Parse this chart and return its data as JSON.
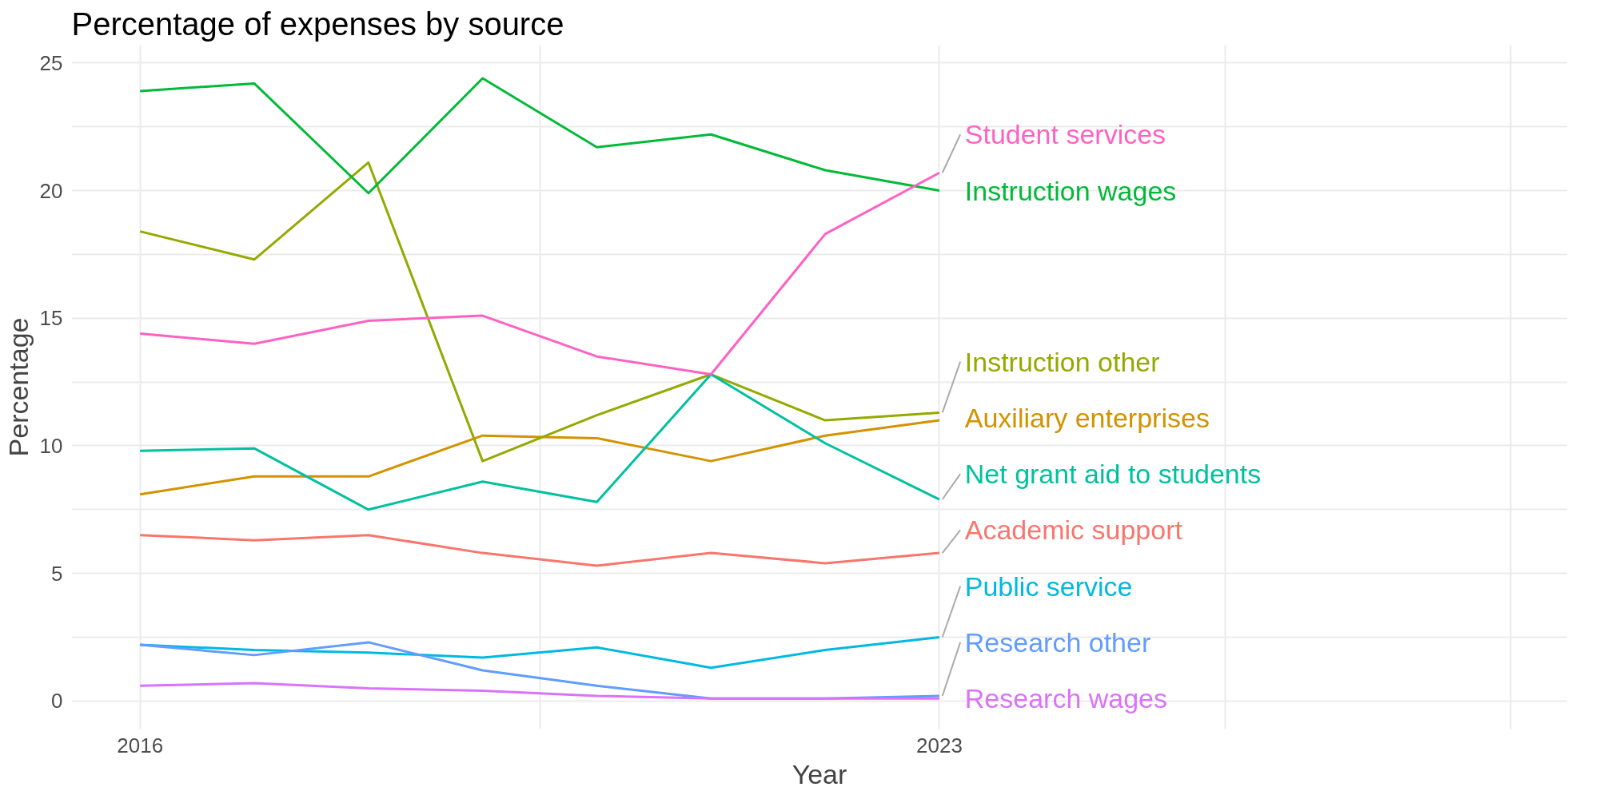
{
  "chart_data": {
    "type": "line",
    "title": "Percentage of expenses by source",
    "xlabel": "Year",
    "ylabel": "Percentage",
    "x": [
      2016,
      2017,
      2018,
      2019,
      2020,
      2021,
      2022,
      2023
    ],
    "xlim": [
      2015.4,
      2028.5
    ],
    "xticks": [
      2016,
      {
        "value": 2019.5,
        "label": null
      },
      2023,
      {
        "value": 2025.5,
        "label": null
      },
      {
        "value": 2028,
        "label": null
      }
    ],
    "ylim": [
      -1.1,
      25.7
    ],
    "yticks": [
      0,
      {
        "value": 2.5,
        "label": null
      },
      5,
      {
        "value": 7.5,
        "label": null
      },
      10,
      {
        "value": 12.5,
        "label": null
      },
      15,
      {
        "value": 17.5,
        "label": null
      },
      20,
      {
        "value": 22.5,
        "label": null
      },
      25
    ],
    "grid": true,
    "marker": "none",
    "line_style": "solid",
    "series": [
      {
        "name": "Academic support",
        "color": "#f8766d",
        "values": [
          6.5,
          6.3,
          6.5,
          5.8,
          5.3,
          5.8,
          5.4,
          5.8
        ]
      },
      {
        "name": "Auxiliary enterprises",
        "color": "#d39200",
        "values": [
          8.1,
          8.8,
          8.8,
          10.4,
          10.3,
          9.4,
          10.4,
          11.0
        ]
      },
      {
        "name": "Instruction other",
        "color": "#93aa00",
        "values": [
          18.4,
          17.3,
          21.1,
          9.4,
          11.2,
          12.8,
          11.0,
          11.3
        ]
      },
      {
        "name": "Instruction wages",
        "color": "#00ba38",
        "values": [
          23.9,
          24.2,
          19.9,
          24.4,
          21.7,
          22.2,
          20.8,
          20.0
        ]
      },
      {
        "name": "Net grant aid to students",
        "color": "#00c19f",
        "values": [
          9.8,
          9.9,
          7.5,
          8.6,
          7.8,
          12.8,
          10.1,
          7.9
        ]
      },
      {
        "name": "Public service",
        "color": "#00b9e3",
        "values": [
          2.2,
          2.0,
          1.9,
          1.7,
          2.1,
          1.3,
          2.0,
          2.5
        ]
      },
      {
        "name": "Research other",
        "color": "#619cff",
        "values": [
          2.2,
          1.8,
          2.3,
          1.2,
          0.6,
          0.1,
          0.1,
          0.2
        ]
      },
      {
        "name": "Research wages",
        "color": "#db72fb",
        "values": [
          0.6,
          0.7,
          0.5,
          0.4,
          0.2,
          0.1,
          0.1,
          0.1
        ]
      },
      {
        "name": "Student services",
        "color": "#ff61c3",
        "values": [
          14.4,
          14.0,
          14.9,
          15.1,
          13.5,
          12.8,
          18.3,
          20.7
        ]
      }
    ]
  }
}
